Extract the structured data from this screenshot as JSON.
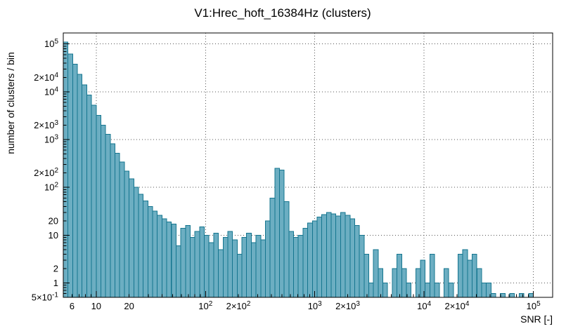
{
  "chart_data": {
    "type": "bar",
    "title": "V1:Hrec_hoft_16384Hz (clusters)",
    "xlabel": "SNR [-]",
    "ylabel": "number of clusters / bin",
    "x_scale": "log",
    "y_scale": "log",
    "xlim": [
      5,
      150000
    ],
    "ylim": [
      0.5,
      170000
    ],
    "grid": "dotted-major-decades",
    "legend": "none",
    "colors": {
      "bar_fill": "#6caec2",
      "bar_stroke": "#15758f",
      "grid": "#555555",
      "axis": "#000000",
      "background": "#ffffff"
    },
    "x_ticks": [
      {
        "v": 6,
        "label": "6"
      },
      {
        "v": 10,
        "label": "10"
      },
      {
        "v": 20,
        "label": "20"
      },
      {
        "v": 100,
        "label": "10^2"
      },
      {
        "v": 200,
        "label": "2×10^2"
      },
      {
        "v": 1000,
        "label": "10^3"
      },
      {
        "v": 2000,
        "label": "2×10^3"
      },
      {
        "v": 10000,
        "label": "10^4"
      },
      {
        "v": 20000,
        "label": "2×10^4"
      },
      {
        "v": 100000,
        "label": "10^5"
      }
    ],
    "y_ticks": [
      {
        "v": 100000,
        "label": "10^5"
      },
      {
        "v": 20000,
        "label": "2×10^4"
      },
      {
        "v": 10000,
        "label": "10^4"
      },
      {
        "v": 2000,
        "label": "2×10^3"
      },
      {
        "v": 1000,
        "label": "10^3"
      },
      {
        "v": 200,
        "label": "2×10^2"
      },
      {
        "v": 100,
        "label": "10^2"
      },
      {
        "v": 20,
        "label": "20"
      },
      {
        "v": 10,
        "label": "10"
      },
      {
        "v": 2,
        "label": "2"
      },
      {
        "v": 1,
        "label": "1"
      },
      {
        "v": 0.5,
        "label": "5×10^-1"
      }
    ],
    "bins": {
      "log10_start": 0.69897,
      "log10_step": 0.043,
      "counts": [
        110000,
        62000,
        38000,
        23000,
        14000,
        8500,
        5200,
        3200,
        2000,
        1300,
        820,
        520,
        340,
        220,
        150,
        100,
        72,
        52,
        40,
        32,
        26,
        22,
        19,
        17,
        6,
        14,
        16,
        9,
        12,
        15,
        10,
        7,
        11,
        5,
        9,
        12,
        8,
        4,
        9,
        11,
        7,
        10,
        8,
        20,
        60,
        250,
        230,
        50,
        12,
        9,
        10,
        14,
        18,
        20,
        24,
        27,
        30,
        28,
        25,
        30,
        26,
        22,
        16,
        10,
        4,
        1,
        5,
        2,
        1,
        0,
        2,
        4,
        2,
        1,
        0,
        2,
        3,
        1,
        4,
        1,
        0,
        2,
        1,
        0,
        4,
        5,
        3,
        4,
        2,
        1,
        1,
        0.6,
        0,
        0.6,
        0,
        0.6,
        0,
        0.6,
        0,
        0.6
      ]
    }
  }
}
